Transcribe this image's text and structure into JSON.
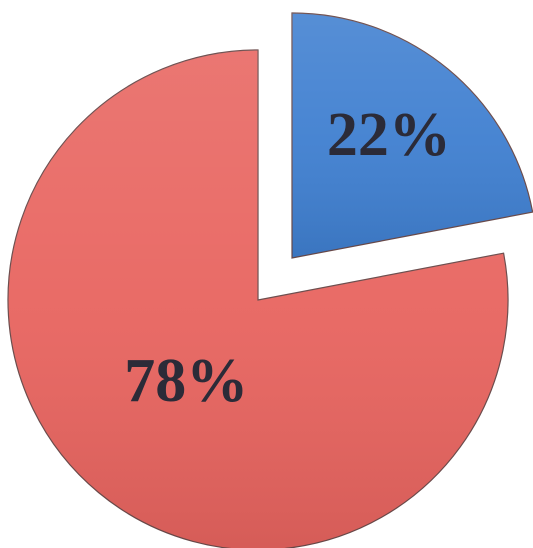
{
  "chart_data": {
    "type": "pie",
    "values": [
      22,
      78
    ],
    "value_labels": [
      "22%",
      "78%"
    ],
    "colors": [
      "#3f7fd0",
      "#e8645f"
    ]
  }
}
